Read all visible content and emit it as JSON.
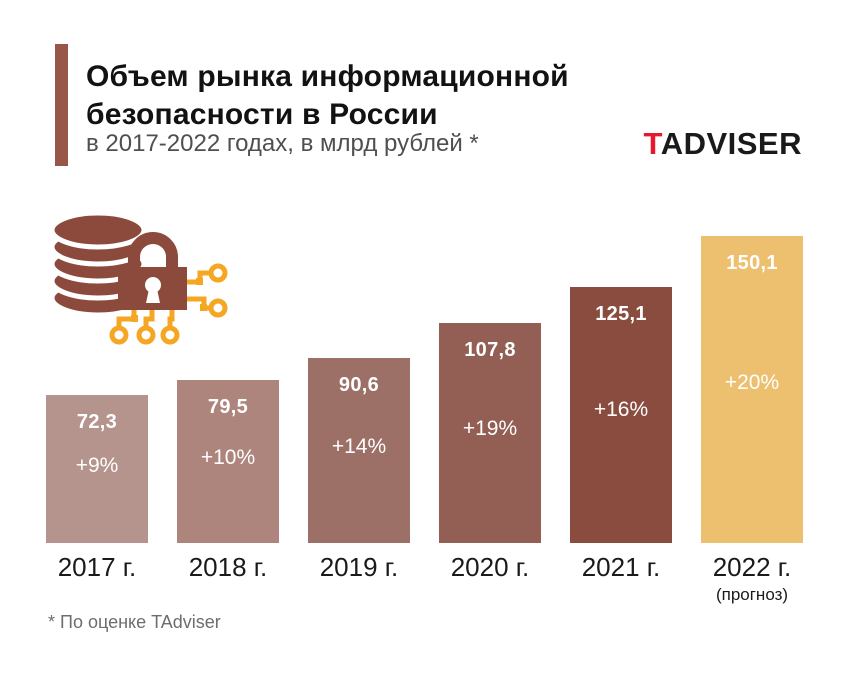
{
  "header": {
    "title_line1": "Объем рынка информационной",
    "title_line2": "безопасности в России",
    "subtitle": "в 2017-2022 годах, в млрд рублей *",
    "accent_color": "#985648"
  },
  "logo": {
    "prefix": "T",
    "rest": "ADVISER",
    "prefix_color": "#e8192d",
    "rest_color": "#1a1a1a"
  },
  "icon": {
    "name": "coins-lock-circuit-icon",
    "coin_color": "#8b4a3b",
    "lock_color": "#8b4a3b",
    "circuit_color": "#f5a623"
  },
  "chart_data": {
    "type": "bar",
    "title": "Объем рынка информационной безопасности в России",
    "subtitle": "в 2017-2022 годах, в млрд рублей *",
    "unit": "млрд рублей",
    "categories": [
      "2017 г.",
      "2018 г.",
      "2019 г.",
      "2020 г.",
      "2021 г.",
      "2022 г."
    ],
    "category_notes": [
      "",
      "",
      "",
      "",
      "",
      "(прогноз)"
    ],
    "values": [
      72.3,
      79.5,
      90.6,
      107.8,
      125.1,
      150.1
    ],
    "value_labels": [
      "72,3",
      "79,5",
      "90,6",
      "107,8",
      "125,1",
      "150,1"
    ],
    "growth_labels": [
      "+9%",
      "+10%",
      "+14%",
      "+19%",
      "+16%",
      "+20%"
    ],
    "bar_colors": [
      "#b6948e",
      "#ad857d",
      "#9d7067",
      "#935e54",
      "#8a4c3f",
      "#ecc06f"
    ],
    "ylim": [
      0,
      150.1
    ],
    "grid": false,
    "legend": false,
    "bar_label_color": "#ffffff"
  },
  "footer": {
    "note": "* По оценке TAdviser"
  }
}
